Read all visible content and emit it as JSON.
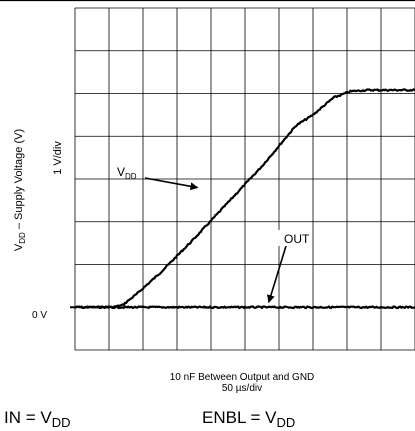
{
  "chart_data": {
    "type": "line",
    "ylabel": "VDD – Supply Voltage (V)",
    "ylabel_parts": {
      "main": "V",
      "sub": "DD",
      "rest": " – Supply Voltage (V)"
    },
    "y_scale_label": "1 V/div",
    "zero_label": "0 V",
    "x_caption": "10 nF Between Output and GND",
    "x_scale_label": "50 µs/div",
    "grid": {
      "columns": 10,
      "rows": 8,
      "zero_row": 7
    },
    "x_range_div": [
      0,
      10
    ],
    "y_range_div": [
      -1,
      7
    ],
    "series": [
      {
        "name": "VDD",
        "label_parts": {
          "main": "V",
          "sub": "DD"
        },
        "points": [
          [
            0,
            0
          ],
          [
            1.1,
            0
          ],
          [
            1.4,
            0.05
          ],
          [
            1.8,
            0.3
          ],
          [
            2.5,
            0.8
          ],
          [
            3.5,
            1.6
          ],
          [
            4.5,
            2.45
          ],
          [
            5.5,
            3.3
          ],
          [
            6.5,
            4.25
          ],
          [
            7.0,
            4.5
          ],
          [
            7.6,
            4.9
          ],
          [
            8.1,
            5.05
          ],
          [
            8.6,
            5.08
          ],
          [
            10,
            5.08
          ]
        ]
      },
      {
        "name": "OUT",
        "label_parts": {
          "main": "OUT",
          "sub": ""
        },
        "points": [
          [
            0,
            0
          ],
          [
            10,
            0
          ]
        ]
      }
    ],
    "annotations": [
      {
        "series": "VDD",
        "arrow_to": [
          3.6,
          2.8
        ]
      },
      {
        "series": "OUT",
        "arrow_to": [
          5.7,
          0.12
        ]
      }
    ],
    "conditions": [
      {
        "main": "IN = V",
        "sub": "DD"
      },
      {
        "main": "ENBL = V",
        "sub": "DD"
      }
    ]
  }
}
